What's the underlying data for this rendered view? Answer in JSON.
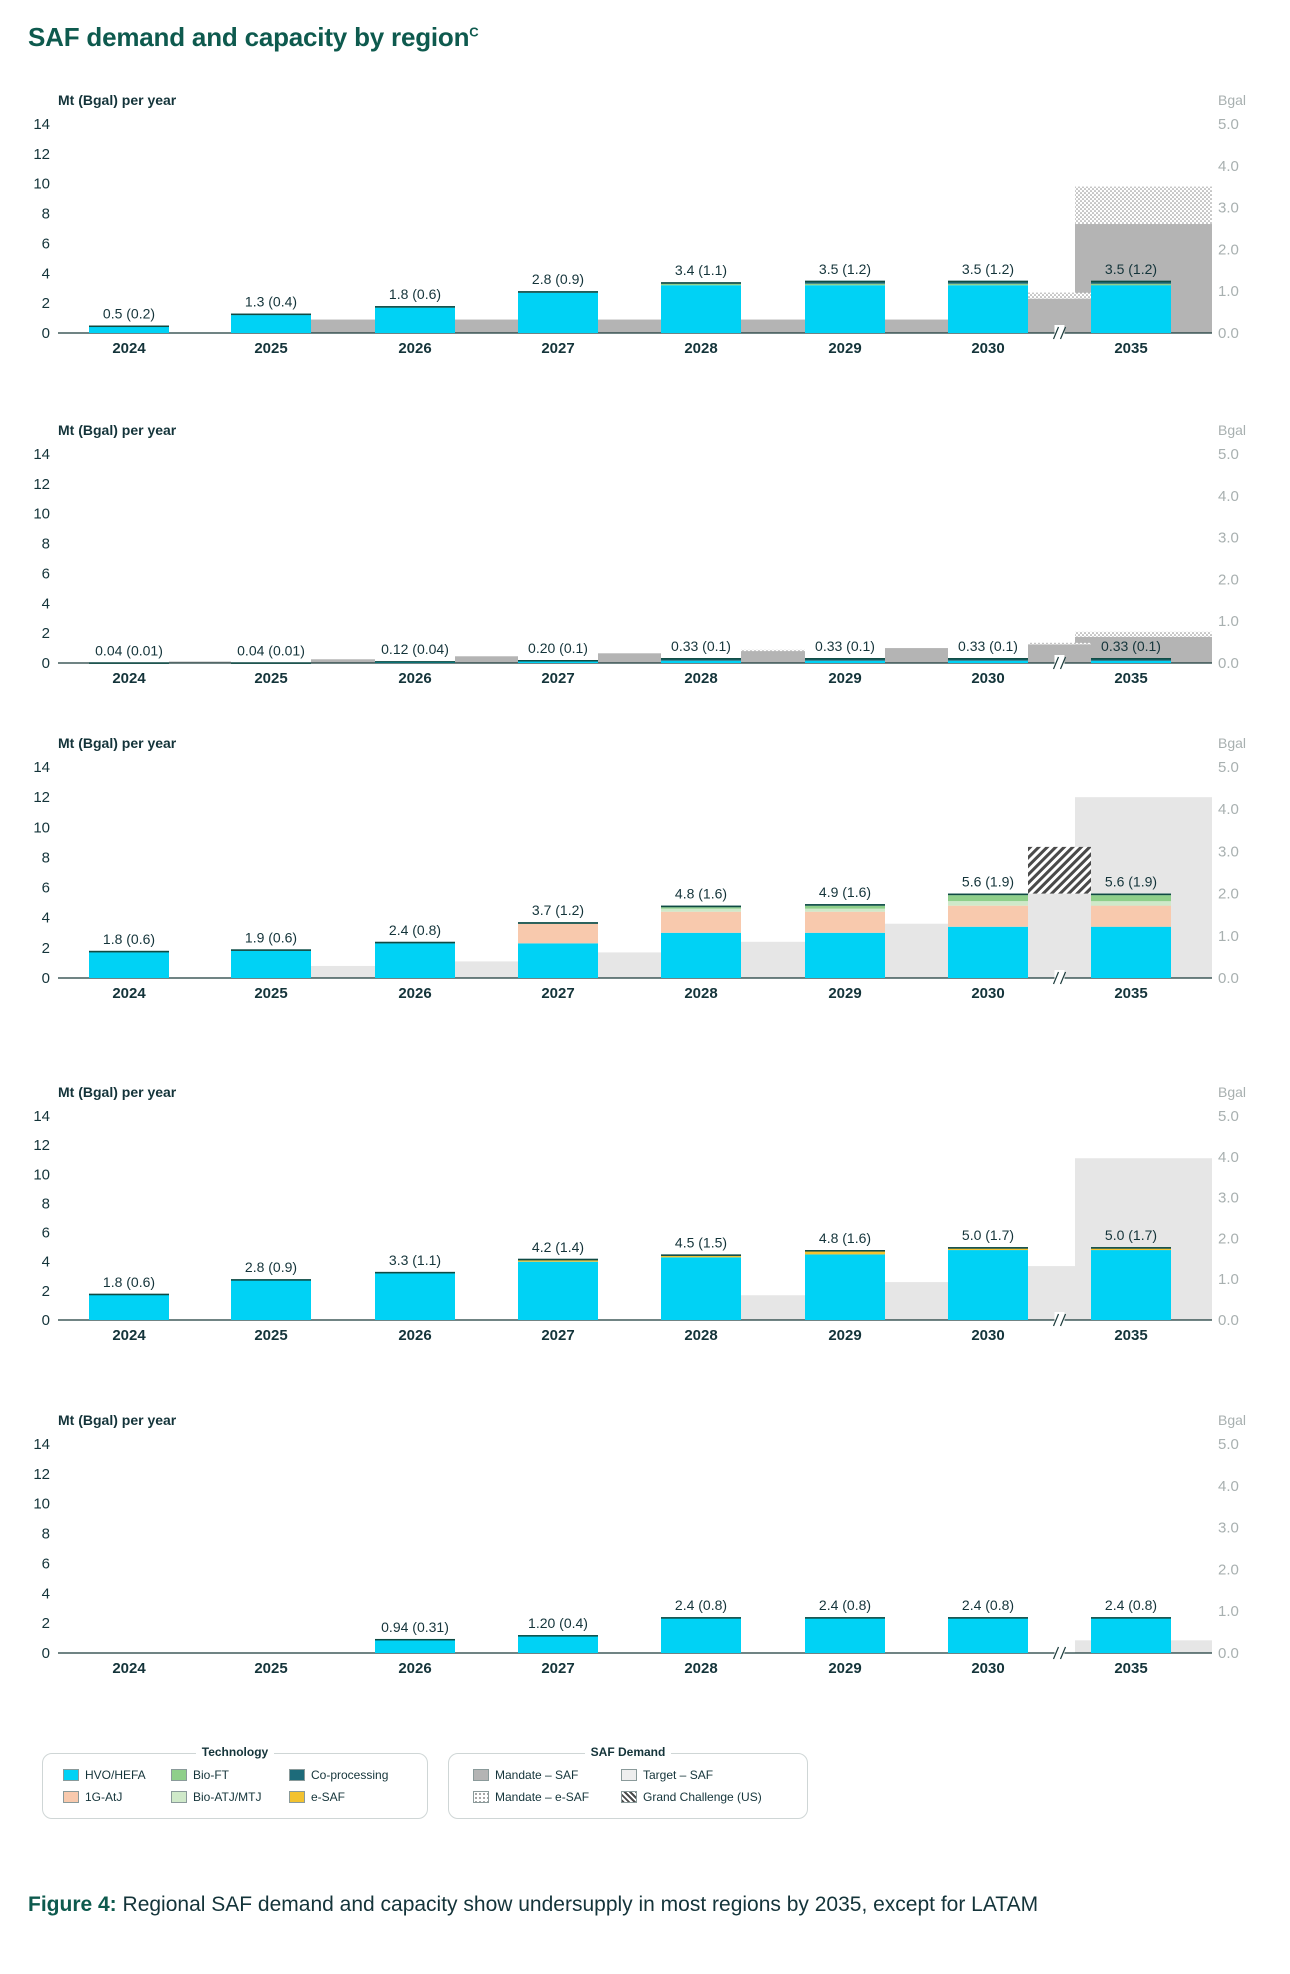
{
  "page_title": "SAF demand and capacity by region",
  "title_superscript": "C",
  "caption": {
    "label": "Figure 4:",
    "text": " Regional SAF demand and capacity show undersupply in most regions by 2035, except for LATAM"
  },
  "colors": {
    "hvo": "#00d2f5",
    "atj1g": "#f8c9ad",
    "bioft": "#8fcf8a",
    "bioatj": "#cfe9c9",
    "coproc": "#1d6b7a",
    "esaf": "#f2c230",
    "mandate": "#b4b4b4",
    "target": "#e6e6e6",
    "accent": "#0e5a4e"
  },
  "legend": {
    "technology_title": "Technology",
    "technology": [
      {
        "label": "HVO/HEFA",
        "color": "#00d2f5"
      },
      {
        "label": "Bio-FT",
        "color": "#8fcf8a"
      },
      {
        "label": "Co-processing",
        "color": "#1d6b7a"
      },
      {
        "label": "1G-AtJ",
        "color": "#f8c9ad"
      },
      {
        "label": "Bio-ATJ/MTJ",
        "color": "#cfe9c9"
      },
      {
        "label": "e-SAF",
        "color": "#f2c230"
      }
    ],
    "demand_title": "SAF Demand",
    "demand": [
      {
        "label": "Mandate – SAF",
        "style": "mandate"
      },
      {
        "label": "Target – SAF",
        "style": "target"
      },
      {
        "label": "Mandate – e-SAF",
        "style": "dots"
      },
      {
        "label": "Grand Challenge (US)",
        "style": "hatch"
      }
    ]
  },
  "chart_data": [
    {
      "type": "bar",
      "ylabel": "Mt (Bgal) per year",
      "y2label": "Bgal",
      "ylim": [
        0,
        14
      ],
      "y_ticks": [
        0,
        2,
        4,
        6,
        8,
        10,
        12,
        14
      ],
      "y2_ticks": [
        "0.0",
        "1.0",
        "2.0",
        "3.0",
        "4.0",
        "5.0"
      ],
      "categories": [
        "2024",
        "2025",
        "2026",
        "2027",
        "2028",
        "2029",
        "2030",
        "2035"
      ],
      "labels": [
        "0.5 (0.2)",
        "1.3 (0.4)",
        "1.8 (0.6)",
        "2.8 (0.9)",
        "3.4 (1.1)",
        "3.5 (1.2)",
        "3.5 (1.2)",
        "3.5 (1.2)"
      ],
      "series": [
        {
          "name": "HVO/HEFA",
          "key": "hvo",
          "values": [
            0.45,
            1.2,
            1.7,
            2.7,
            3.2,
            3.2,
            3.2,
            3.2
          ]
        },
        {
          "name": "Bio-FT",
          "key": "bioft",
          "values": [
            0,
            0,
            0,
            0,
            0.1,
            0.1,
            0.1,
            0.1
          ]
        },
        {
          "name": "Co-processing",
          "key": "coproc",
          "values": [
            0.05,
            0.1,
            0.1,
            0.1,
            0.1,
            0.2,
            0.2,
            0.2
          ]
        }
      ],
      "demand": [
        {
          "name": "Mandate - SAF",
          "key": "mandate",
          "values": [
            0,
            0.9,
            0.9,
            0.9,
            0.9,
            0.9,
            2.3,
            7.3
          ]
        },
        {
          "name": "Mandate - e-SAF",
          "key": "dots",
          "values": [
            0,
            0,
            0,
            0,
            0,
            0,
            0.4,
            2.5
          ]
        }
      ]
    },
    {
      "type": "bar",
      "ylabel": "Mt (Bgal) per year",
      "y2label": "Bgal",
      "ylim": [
        0,
        14
      ],
      "y_ticks": [
        0,
        2,
        4,
        6,
        8,
        10,
        12,
        14
      ],
      "y2_ticks": [
        "0.0",
        "1.0",
        "2.0",
        "3.0",
        "4.0",
        "5.0"
      ],
      "categories": [
        "2024",
        "2025",
        "2026",
        "2027",
        "2028",
        "2029",
        "2030",
        "2035"
      ],
      "labels": [
        "0.04 (0.01)",
        "0.04 (0.01)",
        "0.12 (0.04)",
        "0.20 (0.1)",
        "0.33 (0.1)",
        "0.33 (0.1)",
        "0.33 (0.1)",
        "0.33 (0.1)"
      ],
      "series": [
        {
          "name": "HVO/HEFA",
          "key": "hvo",
          "values": [
            0.02,
            0.02,
            0.05,
            0.1,
            0.15,
            0.15,
            0.15,
            0.15
          ]
        },
        {
          "name": "Co-processing",
          "key": "coproc",
          "values": [
            0.02,
            0.02,
            0.07,
            0.1,
            0.18,
            0.18,
            0.18,
            0.18
          ]
        }
      ],
      "demand": [
        {
          "name": "Mandate - SAF",
          "key": "mandate",
          "values": [
            0.1,
            0.25,
            0.45,
            0.65,
            0.8,
            1.0,
            1.25,
            1.75
          ]
        },
        {
          "name": "Mandate - e-SAF",
          "key": "dots",
          "values": [
            0,
            0,
            0,
            0,
            0.1,
            0,
            0.1,
            0.35
          ]
        }
      ]
    },
    {
      "type": "bar",
      "ylabel": "Mt (Bgal) per year",
      "y2label": "Bgal",
      "ylim": [
        0,
        14
      ],
      "y_ticks": [
        0,
        2,
        4,
        6,
        8,
        10,
        12,
        14
      ],
      "y2_ticks": [
        "0.0",
        "1.0",
        "2.0",
        "3.0",
        "4.0",
        "5.0"
      ],
      "categories": [
        "2024",
        "2025",
        "2026",
        "2027",
        "2028",
        "2029",
        "2030",
        "2035"
      ],
      "labels": [
        "1.8 (0.6)",
        "1.9 (0.6)",
        "2.4 (0.8)",
        "3.7 (1.2)",
        "4.8 (1.6)",
        "4.9 (1.6)",
        "5.6 (1.9)",
        "5.6 (1.9)"
      ],
      "series": [
        {
          "name": "HVO/HEFA",
          "key": "hvo",
          "values": [
            1.7,
            1.8,
            2.3,
            2.3,
            3.0,
            3.0,
            3.4,
            3.4
          ]
        },
        {
          "name": "1G-AtJ",
          "key": "atj1g",
          "values": [
            0,
            0,
            0,
            1.3,
            1.4,
            1.4,
            1.4,
            1.4
          ]
        },
        {
          "name": "Bio-ATJ/MTJ",
          "key": "bioatj",
          "values": [
            0,
            0,
            0,
            0,
            0.2,
            0.2,
            0.3,
            0.3
          ]
        },
        {
          "name": "Bio-FT",
          "key": "bioft",
          "values": [
            0,
            0,
            0,
            0,
            0.1,
            0.2,
            0.4,
            0.4
          ]
        },
        {
          "name": "Co-processing",
          "key": "coproc",
          "values": [
            0.1,
            0.1,
            0.1,
            0.1,
            0.1,
            0.1,
            0.1,
            0.1
          ]
        }
      ],
      "demand": [
        {
          "name": "Target - SAF",
          "key": "target",
          "values": [
            0,
            0.8,
            1.1,
            1.7,
            2.4,
            3.6,
            5.6,
            12.0
          ]
        },
        {
          "name": "Grand Challenge (US)",
          "key": "hatch",
          "values": [
            0,
            0,
            0,
            0,
            0,
            0,
            3.1,
            0
          ]
        }
      ]
    },
    {
      "type": "bar",
      "ylabel": "Mt (Bgal) per year",
      "y2label": "Bgal",
      "ylim": [
        0,
        14
      ],
      "y_ticks": [
        0,
        2,
        4,
        6,
        8,
        10,
        12,
        14
      ],
      "y2_ticks": [
        "0.0",
        "1.0",
        "2.0",
        "3.0",
        "4.0",
        "5.0"
      ],
      "categories": [
        "2024",
        "2025",
        "2026",
        "2027",
        "2028",
        "2029",
        "2030",
        "2035"
      ],
      "labels": [
        "1.8 (0.6)",
        "2.8 (0.9)",
        "3.3 (1.1)",
        "4.2 (1.4)",
        "4.5 (1.5)",
        "4.8 (1.6)",
        "5.0 (1.7)",
        "5.0 (1.7)"
      ],
      "series": [
        {
          "name": "HVO/HEFA",
          "key": "hvo",
          "values": [
            1.75,
            2.75,
            3.2,
            4.0,
            4.3,
            4.5,
            4.8,
            4.8
          ]
        },
        {
          "name": "e-SAF",
          "key": "esaf",
          "values": [
            0,
            0,
            0,
            0.1,
            0.1,
            0.2,
            0.1,
            0.1
          ]
        },
        {
          "name": "Co-processing",
          "key": "coproc",
          "values": [
            0.05,
            0.05,
            0.1,
            0.1,
            0.1,
            0.1,
            0.1,
            0.1
          ]
        }
      ],
      "demand": [
        {
          "name": "Target - SAF",
          "key": "target",
          "values": [
            0,
            0,
            0,
            0,
            1.7,
            2.6,
            3.7,
            11.1
          ]
        }
      ]
    },
    {
      "type": "bar",
      "ylabel": "Mt (Bgal) per year",
      "y2label": "Bgal",
      "ylim": [
        0,
        14
      ],
      "y_ticks": [
        0,
        2,
        4,
        6,
        8,
        10,
        12,
        14
      ],
      "y2_ticks": [
        "0.0",
        "1.0",
        "2.0",
        "3.0",
        "4.0",
        "5.0"
      ],
      "categories": [
        "2024",
        "2025",
        "2026",
        "2027",
        "2028",
        "2029",
        "2030",
        "2035"
      ],
      "labels": [
        "",
        "",
        "0.94 (0.31)",
        "1.20 (0.4)",
        "2.4 (0.8)",
        "2.4 (0.8)",
        "2.4 (0.8)",
        "2.4 (0.8)"
      ],
      "series": [
        {
          "name": "HVO/HEFA",
          "key": "hvo",
          "values": [
            0,
            0,
            0.94,
            1.2,
            2.35,
            2.35,
            2.35,
            2.35
          ]
        },
        {
          "name": "Co-processing",
          "key": "coproc",
          "values": [
            0,
            0,
            0,
            0,
            0.05,
            0.05,
            0.05,
            0.05
          ]
        }
      ],
      "demand": [
        {
          "name": "Target - SAF",
          "key": "target",
          "values": [
            0,
            0,
            0,
            0,
            0,
            0,
            0,
            0.85
          ]
        }
      ]
    }
  ]
}
